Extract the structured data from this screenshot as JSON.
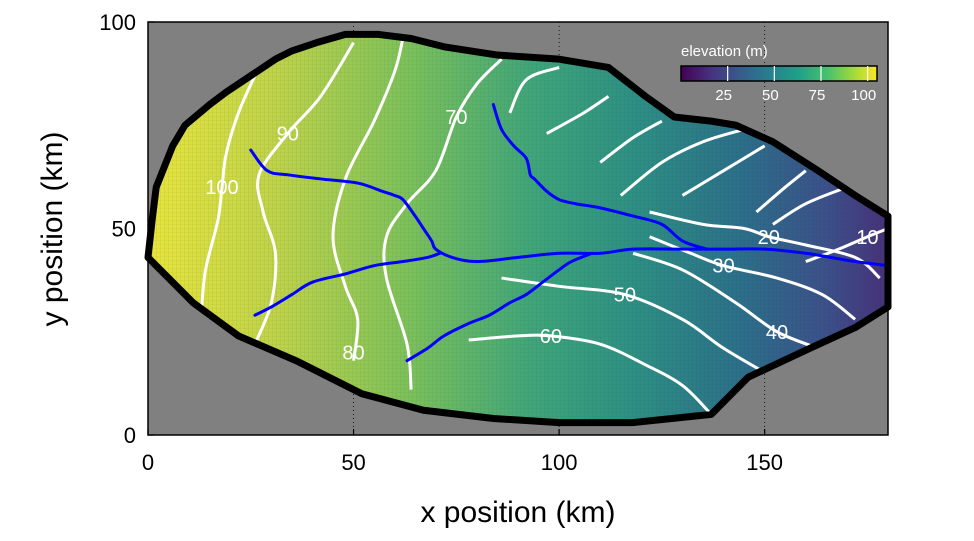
{
  "chart_data": {
    "type": "heatmap",
    "title": "",
    "xlabel": "x position (km)",
    "ylabel": "y position (km)",
    "xlim": [
      0,
      180
    ],
    "ylim": [
      0,
      100
    ],
    "xticks": [
      "0",
      "50",
      "100",
      "150"
    ],
    "yticks": [
      "0",
      "50",
      "100"
    ],
    "xtick_values": [
      0,
      50,
      100,
      150
    ],
    "ytick_values": [
      0,
      50,
      100
    ],
    "colormap": "viridis",
    "background_color": "#808080",
    "river_color": "#0000ff",
    "contour_color": "#ffffff",
    "boundary_color": "#000000",
    "grid": "dotted lines at major ticks",
    "colorbar": {
      "label": "elevation (m)",
      "range": [
        0,
        105
      ],
      "ticks": [
        "25",
        "50",
        "75",
        "100"
      ],
      "tick_values": [
        25,
        50,
        75,
        100
      ],
      "placement": "top-right"
    },
    "domain_boundary": [
      [
        0,
        43
      ],
      [
        1,
        52
      ],
      [
        2,
        60
      ],
      [
        4,
        65
      ],
      [
        6,
        70
      ],
      [
        9,
        75
      ],
      [
        15,
        80
      ],
      [
        19,
        83
      ],
      [
        25,
        87
      ],
      [
        31,
        91
      ],
      [
        35,
        93
      ],
      [
        41,
        95
      ],
      [
        48,
        97
      ],
      [
        56,
        97
      ],
      [
        64,
        96
      ],
      [
        72,
        94
      ],
      [
        85,
        92
      ],
      [
        100,
        91
      ],
      [
        112,
        89
      ],
      [
        121,
        82
      ],
      [
        128,
        77
      ],
      [
        137,
        76
      ],
      [
        143,
        75
      ],
      [
        152,
        71
      ],
      [
        163,
        64
      ],
      [
        172,
        58
      ],
      [
        180,
        53
      ],
      [
        180,
        31
      ],
      [
        172,
        26
      ],
      [
        161,
        21
      ],
      [
        146,
        14
      ],
      [
        137,
        5
      ],
      [
        118,
        3
      ],
      [
        100,
        3
      ],
      [
        84,
        4
      ],
      [
        67,
        6
      ],
      [
        52,
        10
      ],
      [
        36,
        18
      ],
      [
        22,
        24
      ],
      [
        11,
        32
      ],
      [
        4,
        39
      ],
      [
        0,
        43
      ]
    ],
    "contours": [
      {
        "level": 100,
        "label": "100",
        "label_at": [
          18,
          60
        ],
        "points": [
          [
            13,
            30
          ],
          [
            14,
            40
          ],
          [
            17,
            52
          ],
          [
            18,
            60
          ],
          [
            19,
            68
          ],
          [
            22,
            78
          ],
          [
            26,
            87
          ]
        ]
      },
      {
        "level": 90,
        "label": "90",
        "label_at": [
          34,
          73
        ],
        "points": [
          [
            26,
            22
          ],
          [
            30,
            32
          ],
          [
            31,
            44
          ],
          [
            28,
            54
          ],
          [
            27,
            63
          ],
          [
            34,
            73
          ],
          [
            42,
            82
          ],
          [
            50,
            95
          ]
        ]
      },
      {
        "level": 80,
        "label": "80",
        "label_at": [
          50,
          20
        ],
        "points": [
          [
            50,
            18
          ],
          [
            51,
            28
          ],
          [
            48,
            36
          ],
          [
            45,
            48
          ],
          [
            48,
            62
          ],
          [
            55,
            76
          ],
          [
            60,
            88
          ],
          [
            62,
            96
          ]
        ]
      },
      {
        "level": 70,
        "label": "70",
        "label_at": [
          75,
          77
        ],
        "points": [
          [
            64,
            11
          ],
          [
            63,
            22
          ],
          [
            58,
            38
          ],
          [
            58,
            48
          ],
          [
            63,
            56
          ],
          [
            70,
            64
          ],
          [
            75,
            77
          ],
          [
            80,
            85
          ],
          [
            86,
            91
          ]
        ]
      },
      {
        "level": 60,
        "label": "60",
        "label_at": [
          98,
          24
        ],
        "points": [
          [
            78,
            23
          ],
          [
            90,
            24
          ],
          [
            98,
            24
          ],
          [
            110,
            22
          ],
          [
            121,
            17
          ],
          [
            130,
            12
          ],
          [
            137,
            5
          ]
        ]
      },
      {
        "level": 50,
        "label": "50",
        "label_at": [
          116,
          34
        ],
        "points": [
          [
            86,
            38
          ],
          [
            100,
            36
          ],
          [
            116,
            34
          ],
          [
            130,
            28
          ],
          [
            140,
            21
          ],
          [
            152,
            14
          ]
        ]
      },
      {
        "level": 40,
        "label": "40",
        "label_at": [
          153,
          25
        ],
        "points": [
          [
            118,
            44
          ],
          [
            130,
            40
          ],
          [
            143,
            32
          ],
          [
            153,
            25
          ],
          [
            163,
            21
          ]
        ]
      },
      {
        "level": 30,
        "label": "30",
        "label_at": [
          140,
          41
        ],
        "points": [
          [
            122,
            48
          ],
          [
            132,
            44
          ],
          [
            140,
            41
          ],
          [
            153,
            38
          ],
          [
            164,
            34
          ],
          [
            172,
            28
          ]
        ]
      },
      {
        "level": 20,
        "label": "20",
        "label_at": [
          151,
          48
        ],
        "points": [
          [
            122,
            54
          ],
          [
            135,
            51
          ],
          [
            145,
            50
          ],
          [
            151,
            48
          ],
          [
            160,
            46
          ],
          [
            172,
            43
          ],
          [
            178,
            38
          ]
        ]
      },
      {
        "level": 10,
        "label": "10",
        "label_at": [
          175,
          48
        ],
        "points": [
          [
            160,
            42
          ],
          [
            168,
            45
          ],
          [
            175,
            48
          ],
          [
            180,
            50
          ]
        ]
      }
    ],
    "contour_extra_lines": [
      [
        [
          88,
          78
        ],
        [
          92,
          86
        ],
        [
          100,
          89
        ]
      ],
      [
        [
          97,
          73
        ],
        [
          106,
          78
        ],
        [
          112,
          82
        ]
      ],
      [
        [
          110,
          66
        ],
        [
          118,
          72
        ],
        [
          125,
          76
        ]
      ],
      [
        [
          115,
          58
        ],
        [
          125,
          66
        ],
        [
          135,
          71
        ],
        [
          145,
          74
        ]
      ],
      [
        [
          130,
          58
        ],
        [
          140,
          64
        ],
        [
          150,
          70
        ]
      ],
      [
        [
          148,
          54
        ],
        [
          155,
          60
        ],
        [
          160,
          64
        ]
      ],
      [
        [
          152,
          51
        ],
        [
          160,
          56
        ],
        [
          170,
          60
        ]
      ]
    ],
    "rivers": [
      [
        [
          25,
          69
        ],
        [
          29,
          64
        ],
        [
          34,
          63
        ],
        [
          42,
          62
        ],
        [
          51,
          61
        ],
        [
          57,
          59
        ],
        [
          60,
          58
        ],
        [
          62,
          57
        ],
        [
          65,
          53
        ],
        [
          67,
          50
        ],
        [
          69,
          47
        ],
        [
          70,
          45
        ],
        [
          74,
          43
        ],
        [
          80,
          42
        ],
        [
          90,
          43
        ],
        [
          100,
          44
        ],
        [
          110,
          44
        ],
        [
          118,
          45
        ],
        [
          130,
          45
        ],
        [
          140,
          45
        ],
        [
          150,
          45
        ],
        [
          160,
          44
        ],
        [
          166,
          43
        ],
        [
          172,
          42
        ],
        [
          180,
          41
        ]
      ],
      [
        [
          26,
          29
        ],
        [
          30,
          31
        ],
        [
          35,
          34
        ],
        [
          40,
          37
        ],
        [
          48,
          39
        ],
        [
          55,
          41
        ],
        [
          62,
          42
        ],
        [
          68,
          43
        ],
        [
          71,
          44
        ]
      ],
      [
        [
          63,
          18
        ],
        [
          68,
          21
        ],
        [
          72,
          24
        ],
        [
          78,
          27
        ],
        [
          83,
          29
        ],
        [
          88,
          32
        ],
        [
          92,
          34
        ],
        [
          96,
          37
        ],
        [
          100,
          40
        ],
        [
          103,
          42
        ],
        [
          108,
          44
        ]
      ],
      [
        [
          84,
          80
        ],
        [
          86,
          74
        ],
        [
          89,
          70
        ],
        [
          92,
          67
        ],
        [
          93,
          63
        ],
        [
          94,
          62
        ],
        [
          97,
          59
        ],
        [
          100,
          57
        ],
        [
          104,
          56
        ],
        [
          110,
          55
        ],
        [
          118,
          53
        ],
        [
          125,
          51
        ],
        [
          130,
          47
        ],
        [
          136,
          45
        ]
      ]
    ]
  }
}
